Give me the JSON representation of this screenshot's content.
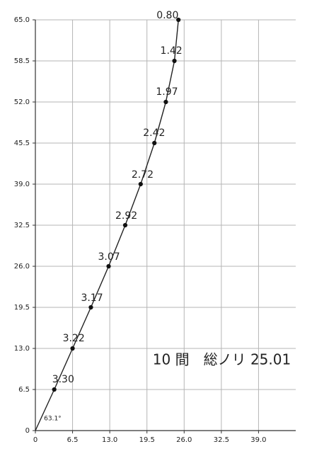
{
  "chart_data": {
    "type": "line",
    "title": "",
    "xlabel": "",
    "ylabel": "",
    "xlim": [
      0,
      45.5
    ],
    "ylim": [
      0,
      65
    ],
    "x_ticks": [
      "0",
      "6.5",
      "13.0",
      "19.5",
      "26.0",
      "32.5",
      "39.0"
    ],
    "y_ticks": [
      "0",
      "6.5",
      "13.0",
      "19.5",
      "26.0",
      "32.5",
      "39.0",
      "45.5",
      "52.0",
      "58.5",
      "65.0"
    ],
    "grid": true,
    "series": [
      {
        "points": [
          {
            "x": 0,
            "y": 0,
            "label": ""
          },
          {
            "x": 3.3,
            "y": 6.5,
            "label": "3.30"
          },
          {
            "x": 6.5,
            "y": 13.0,
            "label": "3.22"
          },
          {
            "x": 9.7,
            "y": 19.5,
            "label": "3.17"
          },
          {
            "x": 12.8,
            "y": 26.0,
            "label": "3.07"
          },
          {
            "x": 15.7,
            "y": 32.5,
            "label": "2.92"
          },
          {
            "x": 18.4,
            "y": 39.0,
            "label": "2.72"
          },
          {
            "x": 20.8,
            "y": 45.5,
            "label": "2.42"
          },
          {
            "x": 22.8,
            "y": 52.0,
            "label": "1.97"
          },
          {
            "x": 24.3,
            "y": 58.5,
            "label": "1.42"
          },
          {
            "x": 25.0,
            "y": 65.0,
            "label": "0.80"
          }
        ]
      }
    ],
    "annotations": [
      {
        "id": "angle",
        "text": "63.1°"
      },
      {
        "id": "summary",
        "text": "10 間　総ノリ 25.01"
      }
    ]
  },
  "colors": {
    "axis": "#333333",
    "grid": "#b5b5b5",
    "line": "#222222",
    "marker": "#111111",
    "text": "#222222",
    "background": "#ffffff"
  }
}
